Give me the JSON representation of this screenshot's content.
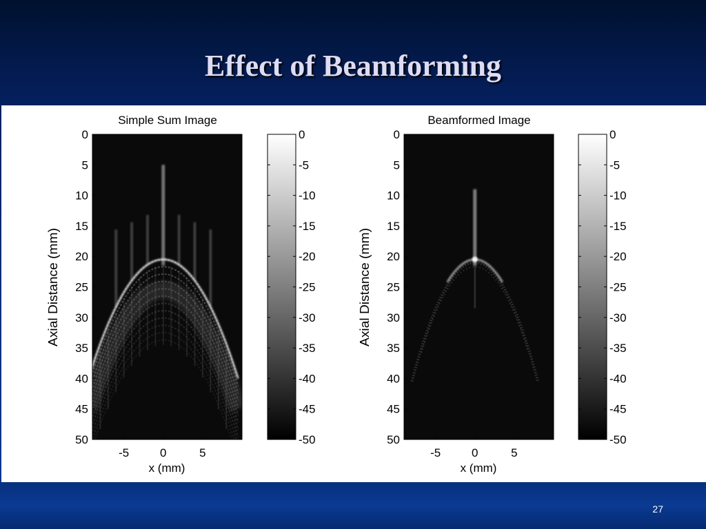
{
  "slide": {
    "title": "Effect of Beamforming",
    "page_number": "27"
  },
  "chart_data": [
    {
      "type": "heatmap",
      "title": "Simple Sum Image",
      "xlabel": "x (mm)",
      "ylabel": "Axial Distance (mm)",
      "x_ticks": [
        "-5",
        "0",
        "5"
      ],
      "y_ticks": [
        "0",
        "5",
        "10",
        "15",
        "20",
        "25",
        "30",
        "35",
        "40",
        "45",
        "50"
      ],
      "xlim": [
        -9,
        10
      ],
      "ylim": [
        0,
        50
      ],
      "colorbar_ticks": [
        "0",
        "-5",
        "-10",
        "-15",
        "-20",
        "-25",
        "-30",
        "-35",
        "-40",
        "-45",
        "-50"
      ],
      "colorbar_range_db": [
        -50,
        0
      ],
      "colormap": "gray",
      "features": {
        "arc_apex_depth_mm": 20.5,
        "arc_edge_depth_mm": 40,
        "arc_halfwidth_mm": 9.5,
        "axial_streaks_x_mm": [
          0,
          -2,
          2,
          -4,
          4,
          -6,
          6
        ],
        "sidelobe_level": "high"
      }
    },
    {
      "type": "heatmap",
      "title": "Beamformed Image",
      "xlabel": "x (mm)",
      "ylabel": "Axial Distance (mm)",
      "x_ticks": [
        "-5",
        "0",
        "5"
      ],
      "y_ticks": [
        "0",
        "5",
        "10",
        "15",
        "20",
        "25",
        "30",
        "35",
        "40",
        "45",
        "50"
      ],
      "xlim": [
        -9,
        10
      ],
      "ylim": [
        0,
        50
      ],
      "colorbar_ticks": [
        "0",
        "-5",
        "-10",
        "-15",
        "-20",
        "-25",
        "-30",
        "-35",
        "-40",
        "-45",
        "-50"
      ],
      "colorbar_range_db": [
        -50,
        0
      ],
      "colormap": "gray",
      "features": {
        "arc_apex_depth_mm": 20.5,
        "arc_edge_depth_mm": 40,
        "arc_halfwidth_mm": 8,
        "axial_streaks_x_mm": [
          0
        ],
        "sidelobe_level": "low"
      }
    }
  ]
}
